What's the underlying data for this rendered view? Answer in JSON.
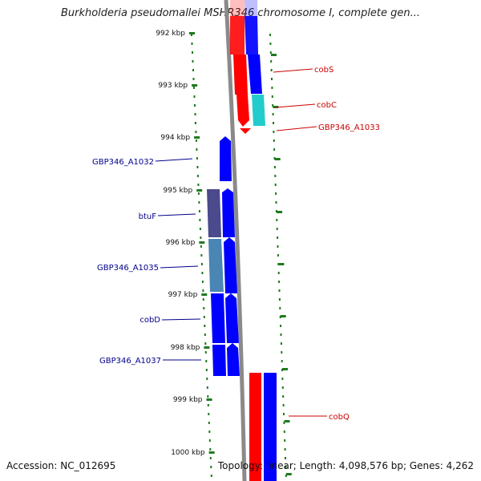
{
  "title": "Burkholderia pseudomallei MSHR346 chromosome I, complete gen...",
  "footer": {
    "accession": "Accession: NC_012695",
    "summary": "Topology: linear; Length: 4,098,576 bp; Genes: 4,262"
  },
  "colors": {
    "background": "#ffffff",
    "backbone": "#8a8a8a",
    "ruler": "#1e7a1e",
    "forward_label": "#cc0000",
    "reverse_label": "#00008b",
    "red": "#ff0000",
    "blue": "#0000ff",
    "cyan": "#22cccc",
    "slate": "#4a4a8c",
    "steel": "#4a86b4"
  },
  "kbp_ticks": [
    "992 kbp",
    "993 kbp",
    "994 kbp",
    "995 kbp",
    "996 kbp",
    "997 kbp",
    "998 kbp",
    "999 kbp",
    "1000 kbp"
  ],
  "gene_labels": [
    {
      "name": "cobS",
      "strand": "forward"
    },
    {
      "name": "cobC",
      "strand": "forward"
    },
    {
      "name": "GBP346_A1033",
      "strand": "forward"
    },
    {
      "name": "GBP346_A1032",
      "strand": "reverse"
    },
    {
      "name": "btuF",
      "strand": "reverse"
    },
    {
      "name": "GBP346_A1035",
      "strand": "reverse"
    },
    {
      "name": "cobD",
      "strand": "reverse"
    },
    {
      "name": "GBP346_A1037",
      "strand": "reverse"
    },
    {
      "name": "cobQ",
      "strand": "forward"
    }
  ]
}
